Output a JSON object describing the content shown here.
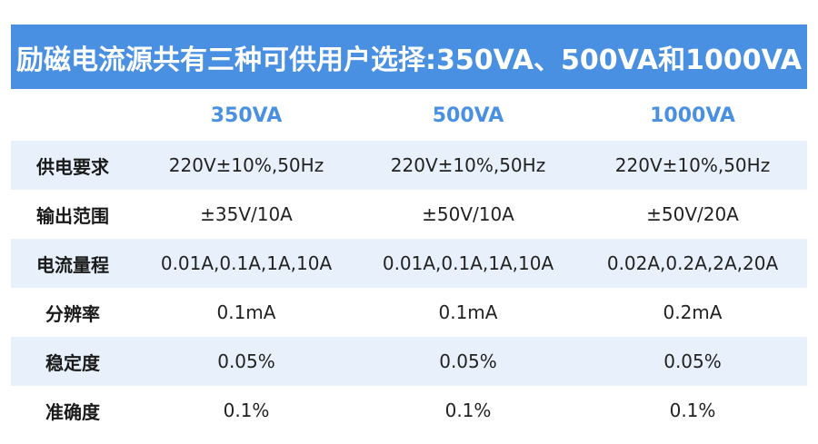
{
  "title": "励磁电流源共有三种可供用户选择:350VA、500VA和1000VA",
  "columns": [
    "350VA",
    "500VA",
    "1000VA"
  ],
  "rows": [
    {
      "label": "供电要求",
      "values": [
        "220V±10%,50Hz",
        "220V±10%,50Hz",
        "220V±10%,50Hz"
      ]
    },
    {
      "label": "输出范围",
      "values": [
        "±35V/10A",
        "±50V/10A",
        "±50V/20A"
      ]
    },
    {
      "label": "电流量程",
      "values": [
        "0.01A,0.1A,1A,10A",
        "0.01A,0.1A,1A,10A",
        "0.02A,0.2A,2A,20A"
      ]
    },
    {
      "label": "分辨率",
      "values": [
        "0.1mA",
        "0.1mA",
        "0.2mA"
      ]
    },
    {
      "label": "稳定度",
      "values": [
        "0.05%",
        "0.05%",
        "0.05%"
      ]
    },
    {
      "label": "准确度",
      "values": [
        "0.1%",
        "0.1%",
        "0.1%"
      ]
    }
  ],
  "colors": {
    "banner": "#4a90e2",
    "header_text": "#4a90e2",
    "row_shade": "#e8f1fb"
  }
}
